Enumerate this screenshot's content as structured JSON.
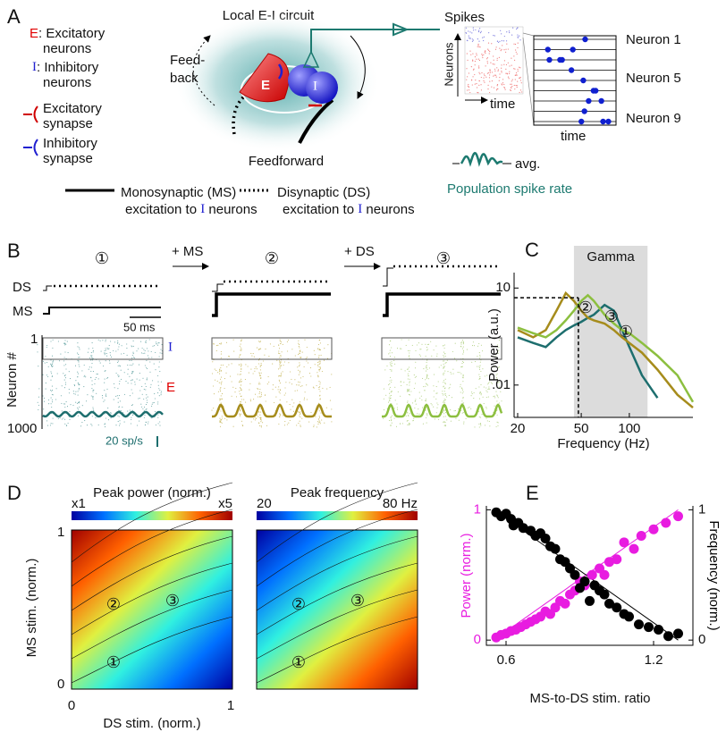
{
  "panel_a": {
    "label": "A",
    "title": "Local E-I circuit",
    "legend": [
      {
        "symbol": "E",
        "text": [
          ": Excitatory",
          "neurons"
        ]
      },
      {
        "symbol": "I",
        "text": [
          ": Inhibitory",
          "neurons"
        ]
      },
      {
        "text": [
          "Excitatory",
          "synapse"
        ]
      },
      {
        "text": [
          "Inhibitory",
          "synapse"
        ]
      }
    ],
    "feedback": [
      "Feed-",
      "back"
    ],
    "feedforward": "Feedforward",
    "cell_e": "E",
    "cell_i": "I",
    "spikes": "Spikes",
    "neurons_axis": "Neurons",
    "time_raster": "time",
    "time_zoom": "time",
    "neuron_labels": [
      "Neuron 1",
      "Neuron 5",
      "Neuron 9"
    ],
    "avg": "avg.",
    "population": "Population spike rate",
    "ms_legend": [
      "Monosynaptic (MS)",
      "excitation to",
      "I",
      "neurons"
    ],
    "ds_legend": [
      "Disynaptic (DS)",
      "excitation to",
      "I",
      "neurons"
    ]
  },
  "panel_b": {
    "label": "B",
    "conditions": [
      "①",
      "②",
      "③"
    ],
    "steps": [
      "+ MS",
      "+ DS"
    ],
    "ds": "DS",
    "ms": "MS",
    "scale_time": "50 ms",
    "neuron_top": "1",
    "neuron_bottom": "1000",
    "neuron_axis": "Neuron #",
    "i_label": "I",
    "e_label": "E",
    "scale_rate": "20 sp/s"
  },
  "panel_d": {
    "label": "D",
    "maps": [
      {
        "title": "Peak power (norm.)",
        "cbar": [
          "x1",
          "x5"
        ]
      },
      {
        "title": "Peak frequency",
        "cbar": [
          "20",
          "80 Hz"
        ]
      }
    ],
    "ylabel": "MS stim. (norm.)",
    "xlabel": "DS stim. (norm.)",
    "yticks": [
      "1",
      "0"
    ],
    "xticks": [
      "0",
      "1"
    ],
    "markers": [
      "①",
      "②",
      "③"
    ]
  },
  "chart_data": [
    {
      "type": "line",
      "panel_label": "C",
      "band_label": "Gamma",
      "ylabel": "Power (a.u.)",
      "xlabel": "Frequency (Hz)",
      "log_x": true,
      "log_y": true,
      "xlim": [
        19,
        250
      ],
      "ylim": [
        0.001,
        30
      ],
      "xticks": [
        20,
        50,
        100
      ],
      "yticks": [
        10,
        {
          "value": 0.01,
          "label": ".01"
        }
      ],
      "band": [
        45,
        130
      ],
      "reference": {
        "x": 48,
        "y": 5
      },
      "x": [
        20,
        25,
        30,
        35,
        40,
        45,
        50,
        55,
        60,
        70,
        80,
        90,
        100,
        120,
        150,
        200,
        250
      ],
      "series": [
        {
          "name": "①",
          "color": "#1d6e6e",
          "values": [
            0.3,
            0.2,
            0.15,
            0.3,
            0.5,
            0.7,
            0.9,
            1.2,
            1.5,
            3,
            2,
            0.5,
            0.15,
            0.02,
            0.004,
            null,
            null
          ]
        },
        {
          "name": "②",
          "color": "#a68c1c",
          "values": [
            0.5,
            0.3,
            0.5,
            2,
            7,
            4,
            2,
            1.2,
            1,
            0.8,
            0.5,
            0.3,
            0.2,
            0.1,
            0.03,
            0.005,
            0.002
          ]
        },
        {
          "name": "③",
          "color": "#8cbf3f",
          "values": [
            0.6,
            0.4,
            0.3,
            0.5,
            1,
            2,
            4,
            6,
            4,
            1.5,
            0.8,
            0.5,
            0.4,
            0.2,
            0.08,
            0.02,
            0.003
          ]
        }
      ]
    },
    {
      "type": "scatter",
      "panel_label": "E",
      "ylabel": "Power (norm.)",
      "y2label": "Frequency (norm.)",
      "xlabel": "MS-to-DS stim. ratio",
      "xlim": [
        0.52,
        1.36
      ],
      "ylim": [
        -0.04,
        1.03
      ],
      "y2lim": [
        -0.04,
        1.03
      ],
      "xticks": [
        0.6,
        1.2
      ],
      "yticks": [
        0,
        1
      ],
      "y2ticks": [
        0,
        1
      ],
      "fit_x": [
        0.55,
        1.3
      ],
      "series": [
        {
          "color": "#e81ce0",
          "axis": "y",
          "fit": [
            0,
            1
          ],
          "x": [
            0.56,
            0.58,
            0.6,
            0.62,
            0.64,
            0.66,
            0.68,
            0.7,
            0.72,
            0.74,
            0.76,
            0.78,
            0.8,
            0.82,
            0.84,
            0.86,
            0.88,
            0.9,
            0.92,
            0.95,
            0.98,
            1.0,
            1.02,
            1.05,
            1.08,
            1.12,
            1.15,
            1.2,
            1.25,
            1.3
          ],
          "values": [
            0.02,
            0.04,
            0.05,
            0.07,
            0.08,
            0.1,
            0.12,
            0.14,
            0.16,
            0.18,
            0.22,
            0.2,
            0.25,
            0.3,
            0.28,
            0.35,
            0.38,
            0.45,
            0.42,
            0.5,
            0.55,
            0.5,
            0.6,
            0.62,
            0.75,
            0.7,
            0.8,
            0.85,
            0.9,
            0.95
          ]
        },
        {
          "color": "#000000",
          "axis": "y2",
          "fit": [
            1,
            0
          ],
          "x": [
            0.56,
            0.58,
            0.6,
            0.62,
            0.63,
            0.65,
            0.67,
            0.7,
            0.72,
            0.74,
            0.76,
            0.78,
            0.8,
            0.82,
            0.84,
            0.86,
            0.88,
            0.9,
            0.92,
            0.94,
            0.96,
            0.98,
            1.0,
            1.02,
            1.05,
            1.08,
            1.1,
            1.14,
            1.18,
            1.22,
            1.26,
            1.3
          ],
          "values": [
            0.98,
            0.95,
            0.97,
            0.93,
            0.88,
            0.9,
            0.86,
            0.84,
            0.8,
            0.82,
            0.78,
            0.72,
            0.7,
            0.62,
            0.6,
            0.55,
            0.5,
            0.4,
            0.45,
            0.3,
            0.42,
            0.38,
            0.35,
            0.28,
            0.25,
            0.2,
            0.18,
            0.12,
            0.1,
            0.08,
            0.03,
            0.05
          ]
        }
      ]
    }
  ]
}
